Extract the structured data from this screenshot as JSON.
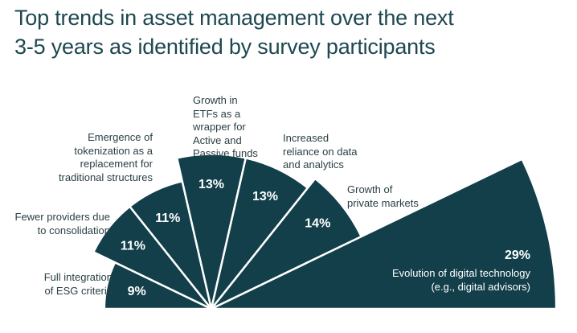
{
  "chart_data": {
    "type": "polar",
    "title": "Top trends in asset management over the next\n3-5 years as identified by survey participants",
    "categories": [
      "Full integration\nof ESG criteria",
      "Fewer providers due\nto consolidation",
      "Emergence of\ntokenization as a\nreplacement for\ntraditional structures",
      "Growth in\nETFs as a\nwrapper for\nActive and\nPassive funds",
      "Increased\nreliance on data\nand analytics",
      "Growth of\nprivate markets",
      "Evolution of digital technology\n(e.g., digital advisors)"
    ],
    "values": [
      9,
      11,
      11,
      13,
      13,
      14,
      29
    ],
    "value_labels": [
      "9%",
      "11%",
      "11%",
      "13%",
      "13%",
      "14%",
      "29%"
    ],
    "color": "#123f4a"
  }
}
